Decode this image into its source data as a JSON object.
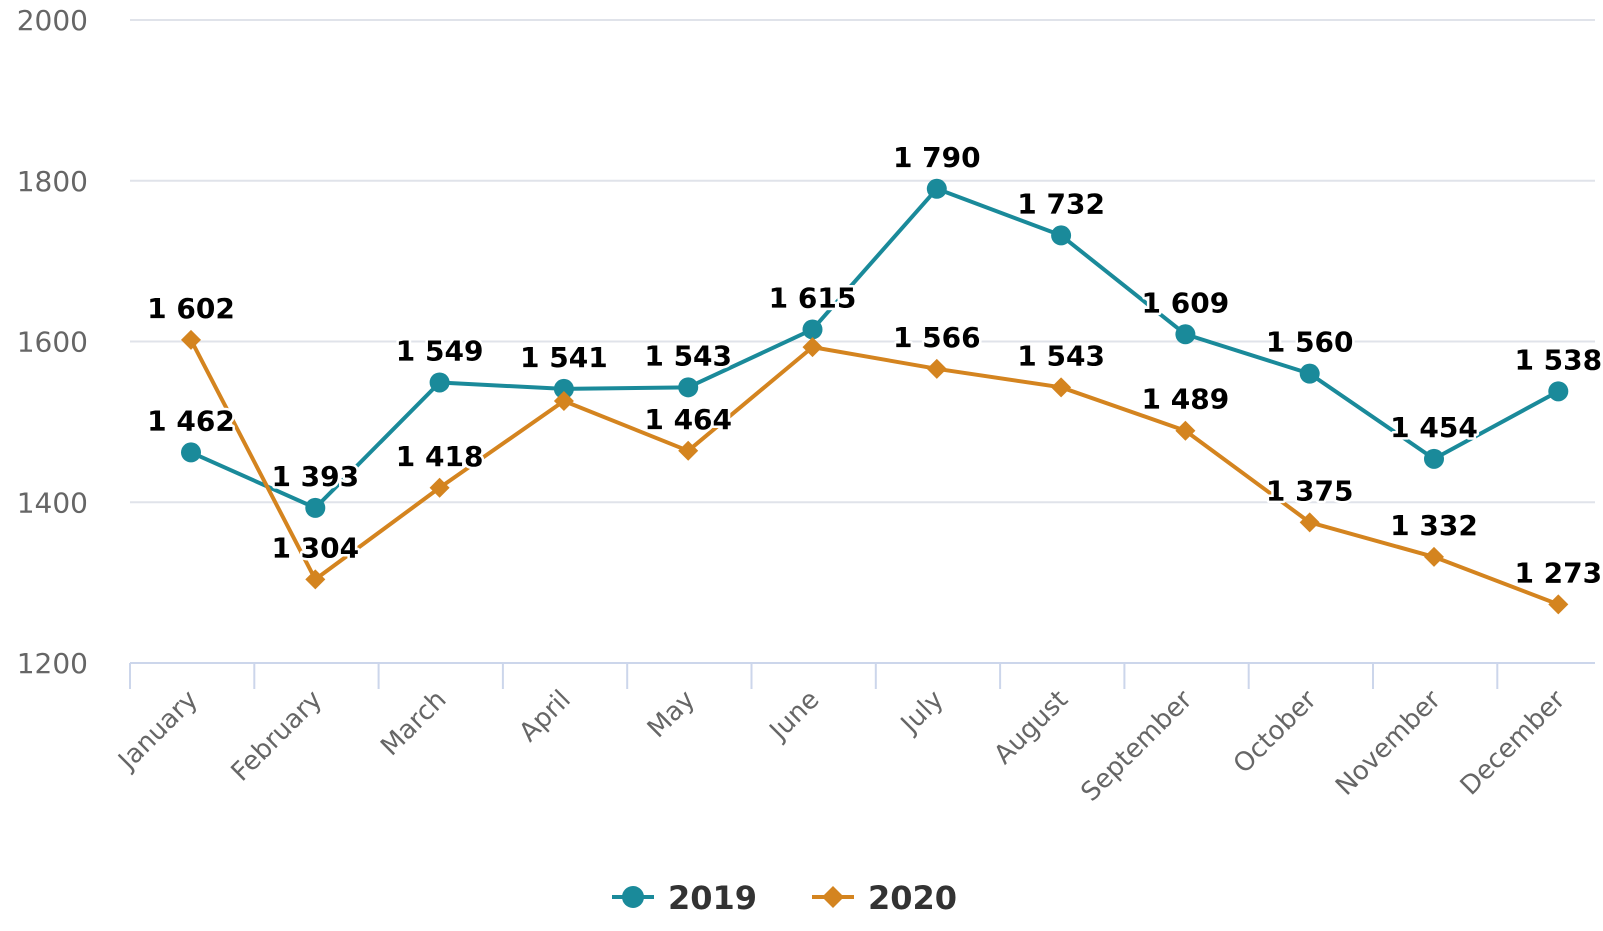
{
  "chart_data": {
    "type": "line",
    "categories": [
      "January",
      "February",
      "March",
      "April",
      "May",
      "June",
      "July",
      "August",
      "September",
      "October",
      "November",
      "December"
    ],
    "series": [
      {
        "name": "2019",
        "color": "#1a8a9a",
        "marker": "circle",
        "values": [
          1462,
          1393,
          1549,
          1541,
          1543,
          1615,
          1790,
          1732,
          1609,
          1560,
          1454,
          1538
        ],
        "labels": [
          "1 462",
          "1 393",
          "1 549",
          "1 541",
          "1 543",
          "1 615",
          "1 790",
          "1 732",
          "1 609",
          "1 560",
          "1 454",
          "1 538"
        ]
      },
      {
        "name": "2020",
        "color": "#d4841f",
        "marker": "diamond",
        "values": [
          1602,
          1304,
          1418,
          1526,
          1464,
          1593,
          1566,
          1543,
          1489,
          1375,
          1332,
          1273
        ],
        "labels": [
          "1 602",
          "1 304",
          "1 418",
          "",
          "1 464",
          "",
          "1 566",
          "1 543",
          "1 489",
          "1 375",
          "1 332",
          "1 273"
        ]
      }
    ],
    "yticks": [
      "1200",
      "1400",
      "1600",
      "1800",
      "2000"
    ],
    "ylim": [
      1200,
      2000
    ],
    "grid": true,
    "legend_position": "bottom-center"
  }
}
